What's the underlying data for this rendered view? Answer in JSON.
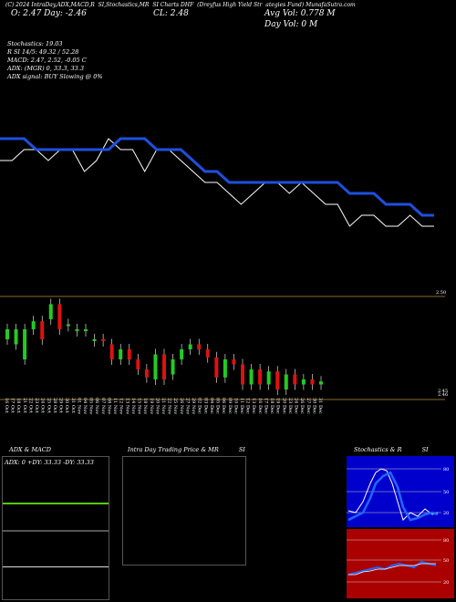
{
  "header": {
    "title_parts": [
      "(C) 2024 IntraDay,ADX,MACD,R",
      "SI,Stochastics,MR",
      "SI Charts DHF",
      "(Dreyfus High Yield Str",
      "ategies Fund) MunafaSutra.com"
    ],
    "open_close": "O: 2.47   Day: -2.46",
    "cl": "CL: 2.48",
    "avg_vol": "Avg Vol: 0.778   M",
    "day_vol": "Day Vol: 0   M"
  },
  "info": {
    "line1": "Stochastics: 19.03",
    "line2": "R                    SI 14/5: 49.32 / 52.28",
    "line3": "MACD: 2.47, 2.52, -0.05 C",
    "line4": "ADX:                   (MGR) 0, 33.3, 33.3",
    "line5": "ADX  signal:                     BUY Slowing @ 0%"
  },
  "price_labels": {
    "right_mid": "2.50",
    "right_low1": "2.46",
    "right_low2": "2.45"
  },
  "chart_data": {
    "type": "line",
    "series": [
      {
        "values": [
          2.51,
          2.51,
          2.52,
          2.52,
          2.51,
          2.52,
          2.52,
          2.5,
          2.51,
          2.53,
          2.52,
          2.52,
          2.5,
          2.52,
          2.52,
          2.51,
          2.5,
          2.49,
          2.49,
          2.48,
          2.47,
          2.48,
          2.49,
          2.49,
          2.48,
          2.49,
          2.48,
          2.47,
          2.47,
          2.45,
          2.46,
          2.46,
          2.45,
          2.45,
          2.46,
          2.45,
          2.45
        ]
      },
      {
        "values": [
          2.53,
          2.53,
          2.53,
          2.52,
          2.52,
          2.52,
          2.52,
          2.52,
          2.52,
          2.52,
          2.53,
          2.53,
          2.53,
          2.52,
          2.52,
          2.52,
          2.51,
          2.5,
          2.5,
          2.49,
          2.49,
          2.49,
          2.49,
          2.49,
          2.49,
          2.49,
          2.49,
          2.49,
          2.49,
          2.48,
          2.48,
          2.48,
          2.47,
          2.47,
          2.47,
          2.46,
          2.46
        ]
      }
    ],
    "candles": [
      {
        "o": 0.6,
        "c": 0.7,
        "up": true
      },
      {
        "o": 0.55,
        "c": 0.7,
        "up": true
      },
      {
        "o": 0.4,
        "c": 0.7,
        "up": true
      },
      {
        "o": 0.7,
        "c": 0.78,
        "up": true
      },
      {
        "o": 0.78,
        "c": 0.6,
        "up": false
      },
      {
        "o": 0.8,
        "c": 0.95,
        "up": true
      },
      {
        "o": 0.95,
        "c": 0.7,
        "up": false
      },
      {
        "o": 0.75,
        "c": 0.75,
        "up": true
      },
      {
        "o": 0.7,
        "c": 0.7,
        "up": true
      },
      {
        "o": 0.7,
        "c": 0.7,
        "up": true
      },
      {
        "o": 0.6,
        "c": 0.6,
        "up": true
      },
      {
        "o": 0.6,
        "c": 0.6,
        "up": false
      },
      {
        "o": 0.55,
        "c": 0.4,
        "up": false
      },
      {
        "o": 0.4,
        "c": 0.5,
        "up": true
      },
      {
        "o": 0.5,
        "c": 0.4,
        "up": false
      },
      {
        "o": 0.4,
        "c": 0.3,
        "up": false
      },
      {
        "o": 0.3,
        "c": 0.22,
        "up": false
      },
      {
        "o": 0.2,
        "c": 0.45,
        "up": true
      },
      {
        "o": 0.45,
        "c": 0.2,
        "up": false
      },
      {
        "o": 0.25,
        "c": 0.4,
        "up": true
      },
      {
        "o": 0.4,
        "c": 0.5,
        "up": true
      },
      {
        "o": 0.5,
        "c": 0.55,
        "up": true
      },
      {
        "o": 0.55,
        "c": 0.5,
        "up": false
      },
      {
        "o": 0.5,
        "c": 0.42,
        "up": false
      },
      {
        "o": 0.42,
        "c": 0.22,
        "up": false
      },
      {
        "o": 0.22,
        "c": 0.4,
        "up": true
      },
      {
        "o": 0.4,
        "c": 0.35,
        "up": false
      },
      {
        "o": 0.35,
        "c": 0.15,
        "up": false
      },
      {
        "o": 0.15,
        "c": 0.3,
        "up": true
      },
      {
        "o": 0.3,
        "c": 0.15,
        "up": false
      },
      {
        "o": 0.15,
        "c": 0.28,
        "up": true
      },
      {
        "o": 0.28,
        "c": 0.1,
        "up": false
      },
      {
        "o": 0.1,
        "c": 0.25,
        "up": true
      },
      {
        "o": 0.25,
        "c": 0.15,
        "up": false
      },
      {
        "o": 0.15,
        "c": 0.2,
        "up": true
      },
      {
        "o": 0.2,
        "c": 0.15,
        "up": false
      },
      {
        "o": 0.15,
        "c": 0.18,
        "up": true
      }
    ],
    "x_labels": [
      "16 Oct",
      "17 Oct",
      "18 Oct",
      "21 Oct",
      "22 Oct",
      "23 Oct",
      "24 Oct",
      "25 Oct",
      "28 Oct",
      "29 Oct",
      "30 Oct",
      "31 Oct",
      "01 Nov",
      "04 Nov",
      "05 Nov",
      "06 Nov",
      "07 Nov",
      "08 Nov",
      "11 Nov",
      "12 Nov",
      "13 Nov",
      "14 Nov",
      "15 Nov",
      "18 Nov",
      "19 Nov",
      "20 Nov",
      "21 Nov",
      "22 Nov",
      "25 Nov",
      "26 Nov",
      "27 Nov",
      "29 Nov",
      "02 Dec",
      "03 Dec",
      "04 Dec",
      "05 Dec",
      "06 Dec",
      "09 Dec",
      "10 Dec",
      "11 Dec",
      "12 Dec",
      "13 Dec",
      "16 Dec",
      "17 Dec",
      "18 Dec",
      "19 Dec",
      "20 Dec",
      "23 Dec",
      "24 Dec",
      "26 Dec",
      "27 Dec",
      "30 Dec",
      "31 Dec"
    ]
  },
  "panels": {
    "adx": {
      "title": "ADX  & MACD",
      "readout": "ADX: 0   +DY: 33.33  -DY: 33.33"
    },
    "intraday": {
      "title": "Intra  Day Trading Price  & MR",
      "title2": "SI"
    },
    "stoch": {
      "title": "Stochastics & R",
      "title2": "SI",
      "ticks": [
        "80",
        "50",
        "20"
      ],
      "ticks2": [
        "80",
        "50",
        "20"
      ]
    }
  },
  "colors": {
    "price_line": "#ffffff",
    "ma_line": "#1e4fe0",
    "up": "#22cc22",
    "down": "#dd1111",
    "adx_green": "#55cc00",
    "stoch_bg": "#0000cc",
    "rsi_bg": "#aa0000",
    "axis": "#8b6b2e"
  }
}
